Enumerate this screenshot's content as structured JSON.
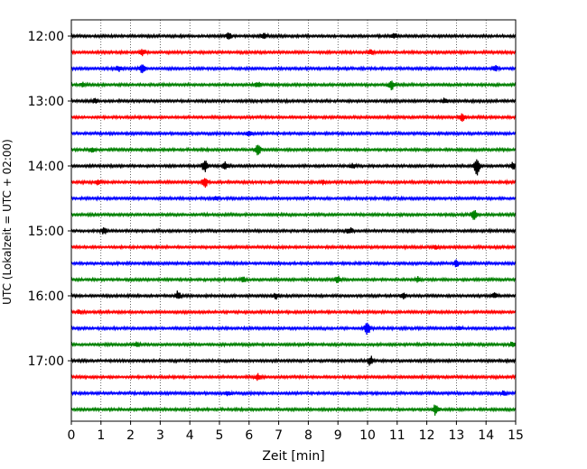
{
  "chart_data": {
    "type": "line",
    "title": "",
    "xlabel": "Zeit  [min]",
    "ylabel": "UTC (Lokalzeit = UTC + 02:00)",
    "xlim": [
      0,
      15
    ],
    "x_ticks": [
      "0",
      "1",
      "2",
      "3",
      "4",
      "5",
      "6",
      "7",
      "8",
      "9",
      "10",
      "11",
      "12",
      "13",
      "14",
      "15"
    ],
    "y_ticks": [
      "12:00",
      "13:00",
      "14:00",
      "15:00",
      "16:00",
      "17:00"
    ],
    "grid": "vertical dotted",
    "legend": "none",
    "colors": [
      "#000000",
      "#ff0000",
      "#0000ff",
      "#008000"
    ],
    "traces": [
      {
        "start": "12:00",
        "color": "#000000",
        "events": [
          [
            5.3,
            0.6
          ],
          [
            6.5,
            0.5
          ],
          [
            10.9,
            0.4
          ]
        ]
      },
      {
        "start": "12:15",
        "color": "#ff0000",
        "events": [
          [
            2.4,
            0.5
          ],
          [
            10.1,
            0.3
          ]
        ]
      },
      {
        "start": "12:30",
        "color": "#0000ff",
        "events": [
          [
            1.6,
            0.4
          ],
          [
            2.4,
            0.7
          ],
          [
            14.3,
            0.5
          ]
        ]
      },
      {
        "start": "12:45",
        "color": "#008000",
        "events": [
          [
            0.4,
            0.3
          ],
          [
            6.3,
            0.4
          ],
          [
            10.8,
            0.8
          ]
        ]
      },
      {
        "start": "13:00",
        "color": "#000000",
        "events": [
          [
            0.8,
            0.3
          ],
          [
            12.6,
            0.4
          ]
        ]
      },
      {
        "start": "13:15",
        "color": "#ff0000",
        "events": [
          [
            13.2,
            0.5
          ]
        ]
      },
      {
        "start": "13:30",
        "color": "#0000ff",
        "events": [
          [
            6.0,
            0.4
          ]
        ]
      },
      {
        "start": "13:45",
        "color": "#008000",
        "events": [
          [
            0.7,
            0.4
          ],
          [
            6.3,
            0.8
          ]
        ]
      },
      {
        "start": "14:00",
        "color": "#000000",
        "events": [
          [
            4.5,
            0.9
          ],
          [
            5.2,
            0.6
          ],
          [
            9.5,
            0.3
          ],
          [
            13.7,
            1.4
          ],
          [
            14.9,
            0.5
          ]
        ]
      },
      {
        "start": "14:15",
        "color": "#ff0000",
        "events": [
          [
            0.9,
            0.4
          ],
          [
            4.5,
            0.9
          ],
          [
            8.5,
            0.3
          ]
        ]
      },
      {
        "start": "14:30",
        "color": "#0000ff",
        "events": [
          [
            4.9,
            0.3
          ]
        ]
      },
      {
        "start": "14:45",
        "color": "#008000",
        "events": [
          [
            13.6,
            0.8
          ]
        ]
      },
      {
        "start": "15:00",
        "color": "#000000",
        "events": [
          [
            1.1,
            0.5
          ],
          [
            9.4,
            0.5
          ]
        ]
      },
      {
        "start": "15:15",
        "color": "#ff0000",
        "events": [
          [
            12.3,
            0.3
          ]
        ]
      },
      {
        "start": "15:30",
        "color": "#0000ff",
        "events": [
          [
            13.0,
            0.5
          ]
        ]
      },
      {
        "start": "15:45",
        "color": "#008000",
        "events": [
          [
            5.8,
            0.4
          ],
          [
            9.0,
            0.5
          ],
          [
            11.7,
            0.4
          ]
        ]
      },
      {
        "start": "16:00",
        "color": "#000000",
        "events": [
          [
            3.6,
            0.7
          ],
          [
            6.9,
            0.5
          ],
          [
            11.2,
            0.4
          ],
          [
            14.3,
            0.4
          ]
        ]
      },
      {
        "start": "16:15",
        "color": "#ff0000",
        "events": [
          [
            0.3,
            0.3
          ]
        ]
      },
      {
        "start": "16:30",
        "color": "#0000ff",
        "events": [
          [
            10.0,
            1.0
          ],
          [
            13.1,
            0.3
          ]
        ]
      },
      {
        "start": "16:45",
        "color": "#008000",
        "events": [
          [
            2.2,
            0.3
          ],
          [
            14.9,
            0.4
          ]
        ]
      },
      {
        "start": "17:00",
        "color": "#000000",
        "events": [
          [
            10.1,
            0.7
          ]
        ]
      },
      {
        "start": "17:15",
        "color": "#ff0000",
        "events": [
          [
            6.3,
            0.5
          ]
        ]
      },
      {
        "start": "17:30",
        "color": "#0000ff",
        "events": [
          [
            5.3,
            0.3
          ],
          [
            14.6,
            0.3
          ]
        ]
      },
      {
        "start": "17:45",
        "color": "#008000",
        "events": [
          [
            12.3,
            0.9
          ]
        ]
      }
    ]
  }
}
